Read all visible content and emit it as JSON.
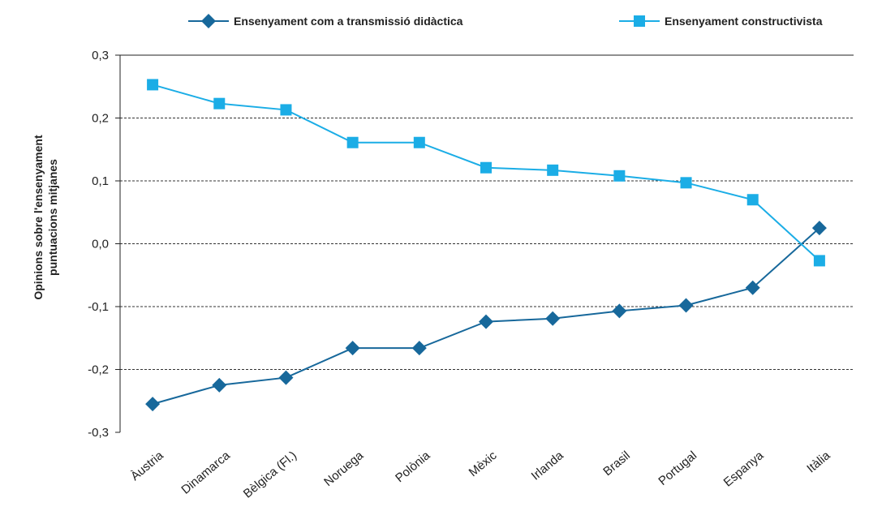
{
  "chart_data": {
    "type": "line",
    "ylabel": [
      "Opinions sobre l'ensenyament",
      "puntuacions mitjanes"
    ],
    "categories": [
      "Àustria",
      "Dinamarca",
      "Bèlgica (Fl.)",
      "Noruega",
      "Polònia",
      "Mèxic",
      "Irlanda",
      "Brasil",
      "Portugal",
      "Espanya",
      "Itàlia"
    ],
    "series": [
      {
        "name": "Ensenyament com a transmissió didàctica",
        "color": "#17689b",
        "marker": "diamond",
        "values": [
          -0.255,
          -0.225,
          -0.213,
          -0.166,
          -0.166,
          -0.124,
          -0.119,
          -0.107,
          -0.098,
          -0.07,
          0.025
        ]
      },
      {
        "name": "Ensenyament constructivista",
        "color": "#1bade6",
        "marker": "square",
        "values": [
          0.253,
          0.223,
          0.213,
          0.161,
          0.161,
          0.121,
          0.117,
          0.108,
          0.097,
          0.07,
          -0.027
        ]
      }
    ],
    "ylim": [
      -0.3,
      0.3
    ],
    "yticks": [
      {
        "value": -0.3,
        "label": "-0,3"
      },
      {
        "value": -0.2,
        "label": "-0,2"
      },
      {
        "value": -0.1,
        "label": "-0,1"
      },
      {
        "value": 0,
        "label": "0,0"
      },
      {
        "value": 0.1,
        "label": "0,1"
      },
      {
        "value": 0.2,
        "label": "0,2"
      },
      {
        "value": 0.3,
        "label": "0,3"
      }
    ],
    "grid": true
  }
}
